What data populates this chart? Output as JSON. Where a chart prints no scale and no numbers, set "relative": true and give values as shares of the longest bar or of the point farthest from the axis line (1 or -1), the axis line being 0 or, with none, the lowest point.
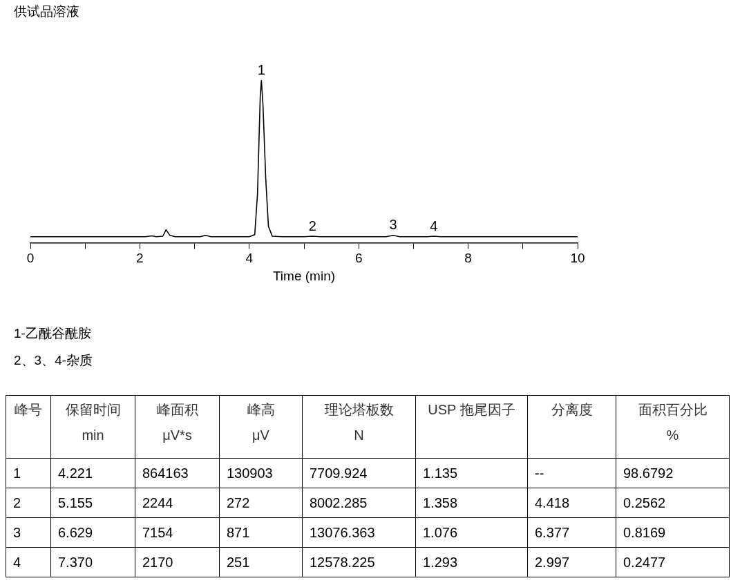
{
  "chart_data": [
    {
      "type": "line",
      "title": "供试品溶液",
      "xlabel": "Time (min)",
      "relative": true,
      "color": "#000000",
      "marker": "none",
      "tick_labels": "x",
      "x": [
        0,
        2.1,
        2.22,
        2.3,
        2.42,
        2.48,
        2.55,
        2.65,
        3.1,
        3.2,
        3.3,
        4.0,
        4.1,
        4.15,
        4.2,
        4.221,
        4.25,
        4.3,
        4.35,
        4.42,
        4.6,
        5.0,
        5.155,
        5.3,
        6.5,
        6.629,
        6.75,
        7.25,
        7.37,
        7.5,
        10
      ],
      "values": [
        0.037,
        0.037,
        0.042,
        0.037,
        0.04,
        0.08,
        0.045,
        0.037,
        0.037,
        0.045,
        0.037,
        0.037,
        0.05,
        0.3,
        0.9,
        1,
        0.85,
        0.4,
        0.1,
        0.04,
        0.037,
        0.037,
        0.04,
        0.037,
        0.037,
        0.045,
        0.037,
        0.037,
        0.04,
        0.037,
        0.037
      ],
      "xlim": [
        0,
        10
      ],
      "xticks": [
        0,
        {
          "value": 1,
          "label": null
        },
        2,
        {
          "value": 3,
          "label": null
        },
        4,
        {
          "value": 5,
          "label": null
        },
        6,
        {
          "value": 7,
          "label": null
        },
        8,
        {
          "value": 9,
          "label": null
        },
        10
      ],
      "annotations": [
        {
          "text": "1",
          "x": 4.221,
          "y": 1
        },
        {
          "text": "2",
          "x": 5.155,
          "y": 0.04
        },
        {
          "text": "3",
          "x": 6.629,
          "y": 0.045
        },
        {
          "text": "4",
          "x": 7.37,
          "y": 0.04
        },
        "1-乙酰谷酰胺",
        "2、3、4-杂质"
      ]
    },
    {
      "type": "heatmap",
      "data_labels": true,
      "ylabel": "峰号",
      "categories": [
        "保留时间\nmin",
        "峰面积\nμV*s",
        "峰高\nμV",
        "理论塔板数\nN",
        "USP 拖尾因子",
        "分离度",
        "面积百分比\n%"
      ],
      "y_categories": [
        "1",
        "2",
        "3",
        "4"
      ],
      "cells": [
        [
          4.221,
          864163,
          130903,
          7709.924,
          1.135,
          null,
          98.6792
        ],
        [
          5.155,
          2244,
          272,
          8002.285,
          1.358,
          4.418,
          0.2562
        ],
        [
          6.629,
          7154,
          871,
          13076.363,
          1.076,
          6.377,
          0.8169
        ],
        [
          7.37,
          2170,
          251,
          12578.225,
          1.293,
          2.997,
          0.2477
        ]
      ],
      "cell_labels": [
        [
          "4.221",
          "864163",
          "130903",
          "7709.924",
          "1.135",
          "--",
          "98.6792"
        ],
        [
          "5.155",
          "2244",
          "272",
          "8002.285",
          "1.358",
          "4.418",
          "0.2562"
        ],
        [
          "6.629",
          "7154",
          "871",
          "13076.363",
          "1.076",
          "6.377",
          "0.8169"
        ],
        [
          "7.370",
          "2170",
          "251",
          "12578.225",
          "1.293",
          "2.997",
          "0.2477"
        ]
      ]
    }
  ]
}
